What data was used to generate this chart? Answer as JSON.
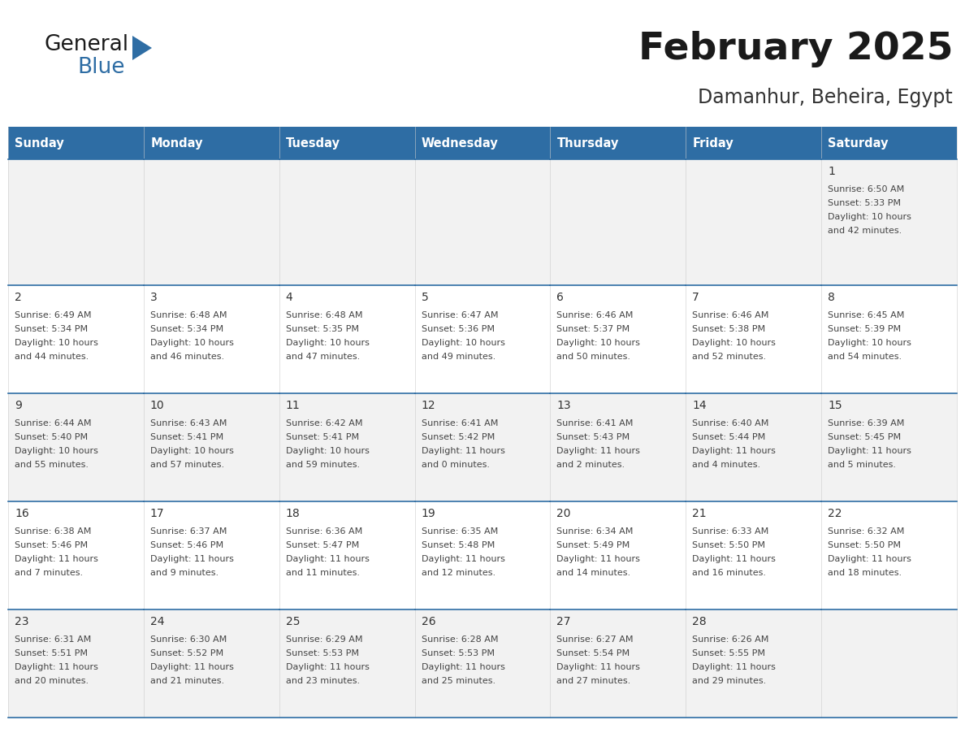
{
  "title": "February 2025",
  "subtitle": "Damanhur, Beheira, Egypt",
  "days_of_week": [
    "Sunday",
    "Monday",
    "Tuesday",
    "Wednesday",
    "Thursday",
    "Friday",
    "Saturday"
  ],
  "header_bg": "#2E6DA4",
  "header_text": "#FFFFFF",
  "cell_bg_odd": "#F2F2F2",
  "cell_bg_even": "#FFFFFF",
  "grid_line_color": "#2E6DA4",
  "text_color": "#444444",
  "day_num_color": "#333333",
  "title_color": "#1a1a1a",
  "subtitle_color": "#333333",
  "calendar_data": [
    [
      null,
      null,
      null,
      null,
      null,
      null,
      {
        "day": 1,
        "sunrise": "6:50 AM",
        "sunset": "5:33 PM",
        "daylight_h": "10 hours",
        "daylight_m": "and 42 minutes."
      }
    ],
    [
      {
        "day": 2,
        "sunrise": "6:49 AM",
        "sunset": "5:34 PM",
        "daylight_h": "10 hours",
        "daylight_m": "and 44 minutes."
      },
      {
        "day": 3,
        "sunrise": "6:48 AM",
        "sunset": "5:34 PM",
        "daylight_h": "10 hours",
        "daylight_m": "and 46 minutes."
      },
      {
        "day": 4,
        "sunrise": "6:48 AM",
        "sunset": "5:35 PM",
        "daylight_h": "10 hours",
        "daylight_m": "and 47 minutes."
      },
      {
        "day": 5,
        "sunrise": "6:47 AM",
        "sunset": "5:36 PM",
        "daylight_h": "10 hours",
        "daylight_m": "and 49 minutes."
      },
      {
        "day": 6,
        "sunrise": "6:46 AM",
        "sunset": "5:37 PM",
        "daylight_h": "10 hours",
        "daylight_m": "and 50 minutes."
      },
      {
        "day": 7,
        "sunrise": "6:46 AM",
        "sunset": "5:38 PM",
        "daylight_h": "10 hours",
        "daylight_m": "and 52 minutes."
      },
      {
        "day": 8,
        "sunrise": "6:45 AM",
        "sunset": "5:39 PM",
        "daylight_h": "10 hours",
        "daylight_m": "and 54 minutes."
      }
    ],
    [
      {
        "day": 9,
        "sunrise": "6:44 AM",
        "sunset": "5:40 PM",
        "daylight_h": "10 hours",
        "daylight_m": "and 55 minutes."
      },
      {
        "day": 10,
        "sunrise": "6:43 AM",
        "sunset": "5:41 PM",
        "daylight_h": "10 hours",
        "daylight_m": "and 57 minutes."
      },
      {
        "day": 11,
        "sunrise": "6:42 AM",
        "sunset": "5:41 PM",
        "daylight_h": "10 hours",
        "daylight_m": "and 59 minutes."
      },
      {
        "day": 12,
        "sunrise": "6:41 AM",
        "sunset": "5:42 PM",
        "daylight_h": "11 hours",
        "daylight_m": "and 0 minutes."
      },
      {
        "day": 13,
        "sunrise": "6:41 AM",
        "sunset": "5:43 PM",
        "daylight_h": "11 hours",
        "daylight_m": "and 2 minutes."
      },
      {
        "day": 14,
        "sunrise": "6:40 AM",
        "sunset": "5:44 PM",
        "daylight_h": "11 hours",
        "daylight_m": "and 4 minutes."
      },
      {
        "day": 15,
        "sunrise": "6:39 AM",
        "sunset": "5:45 PM",
        "daylight_h": "11 hours",
        "daylight_m": "and 5 minutes."
      }
    ],
    [
      {
        "day": 16,
        "sunrise": "6:38 AM",
        "sunset": "5:46 PM",
        "daylight_h": "11 hours",
        "daylight_m": "and 7 minutes."
      },
      {
        "day": 17,
        "sunrise": "6:37 AM",
        "sunset": "5:46 PM",
        "daylight_h": "11 hours",
        "daylight_m": "and 9 minutes."
      },
      {
        "day": 18,
        "sunrise": "6:36 AM",
        "sunset": "5:47 PM",
        "daylight_h": "11 hours",
        "daylight_m": "and 11 minutes."
      },
      {
        "day": 19,
        "sunrise": "6:35 AM",
        "sunset": "5:48 PM",
        "daylight_h": "11 hours",
        "daylight_m": "and 12 minutes."
      },
      {
        "day": 20,
        "sunrise": "6:34 AM",
        "sunset": "5:49 PM",
        "daylight_h": "11 hours",
        "daylight_m": "and 14 minutes."
      },
      {
        "day": 21,
        "sunrise": "6:33 AM",
        "sunset": "5:50 PM",
        "daylight_h": "11 hours",
        "daylight_m": "and 16 minutes."
      },
      {
        "day": 22,
        "sunrise": "6:32 AM",
        "sunset": "5:50 PM",
        "daylight_h": "11 hours",
        "daylight_m": "and 18 minutes."
      }
    ],
    [
      {
        "day": 23,
        "sunrise": "6:31 AM",
        "sunset": "5:51 PM",
        "daylight_h": "11 hours",
        "daylight_m": "and 20 minutes."
      },
      {
        "day": 24,
        "sunrise": "6:30 AM",
        "sunset": "5:52 PM",
        "daylight_h": "11 hours",
        "daylight_m": "and 21 minutes."
      },
      {
        "day": 25,
        "sunrise": "6:29 AM",
        "sunset": "5:53 PM",
        "daylight_h": "11 hours",
        "daylight_m": "and 23 minutes."
      },
      {
        "day": 26,
        "sunrise": "6:28 AM",
        "sunset": "5:53 PM",
        "daylight_h": "11 hours",
        "daylight_m": "and 25 minutes."
      },
      {
        "day": 27,
        "sunrise": "6:27 AM",
        "sunset": "5:54 PM",
        "daylight_h": "11 hours",
        "daylight_m": "and 27 minutes."
      },
      {
        "day": 28,
        "sunrise": "6:26 AM",
        "sunset": "5:55 PM",
        "daylight_h": "11 hours",
        "daylight_m": "and 29 minutes."
      },
      null
    ]
  ],
  "logo_text_general": "General",
  "logo_text_blue": "Blue",
  "logo_color_general": "#1a1a1a",
  "logo_color_blue": "#2E6DA4"
}
